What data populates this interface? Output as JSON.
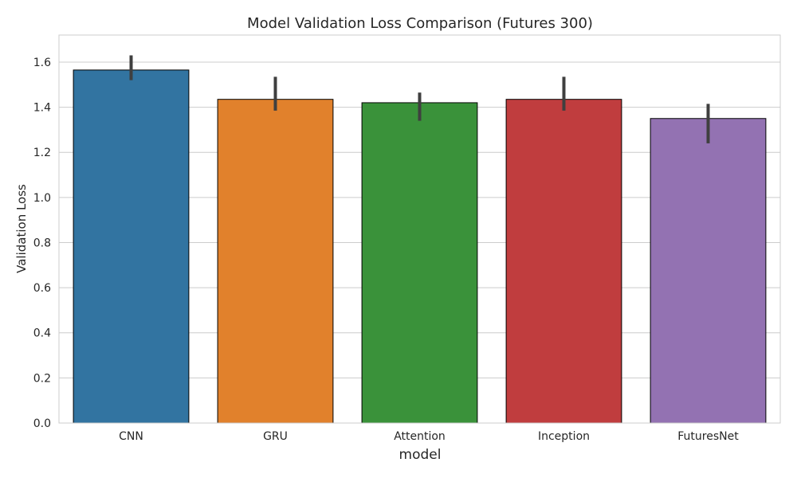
{
  "chart_data": {
    "type": "bar",
    "title": "Model Validation Loss Comparison (Futures 300)",
    "xlabel": "model",
    "ylabel": "Validation Loss",
    "categories": [
      "CNN",
      "GRU",
      "Attention",
      "Inception",
      "FuturesNet"
    ],
    "values": [
      1.565,
      1.435,
      1.42,
      1.435,
      1.35
    ],
    "error_bars": [
      {
        "low": 1.52,
        "high": 1.63
      },
      {
        "low": 1.385,
        "high": 1.535
      },
      {
        "low": 1.34,
        "high": 1.465
      },
      {
        "low": 1.385,
        "high": 1.535
      },
      {
        "low": 1.24,
        "high": 1.415
      }
    ],
    "colors": [
      "#3274a1",
      "#e1812c",
      "#3a923a",
      "#c03d3e",
      "#9372b2"
    ],
    "ylim": [
      0,
      1.72
    ],
    "yticks": [
      0.0,
      0.2,
      0.4,
      0.6,
      0.8,
      1.0,
      1.2,
      1.4,
      1.6
    ],
    "ytick_labels": [
      "0.0",
      "0.2",
      "0.4",
      "0.6",
      "0.8",
      "1.0",
      "1.2",
      "1.4",
      "1.6"
    ],
    "grid": true,
    "grid_axis": "y"
  }
}
